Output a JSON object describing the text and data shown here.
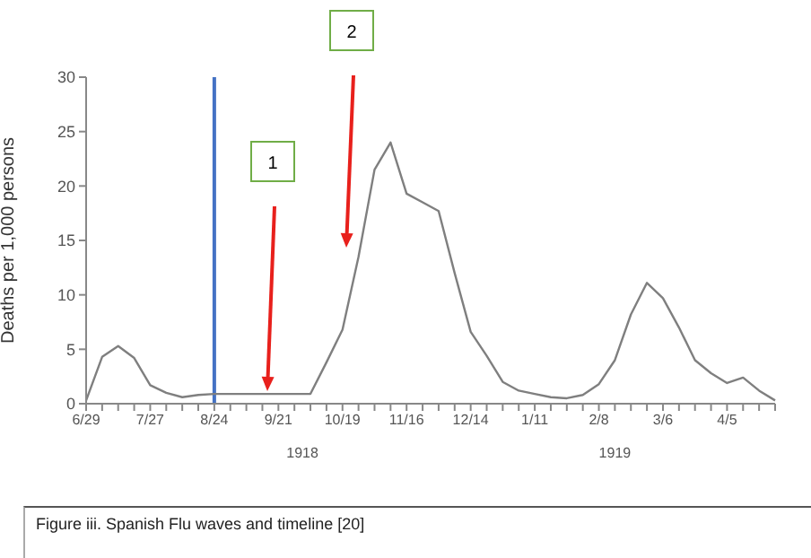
{
  "chart_data": {
    "type": "line",
    "ylabel": "Deaths per 1,000 persons",
    "categories": [
      "6/29",
      null,
      null,
      null,
      "7/27",
      null,
      null,
      null,
      "8/24",
      null,
      null,
      null,
      "9/21",
      null,
      null,
      null,
      "10/19",
      null,
      null,
      null,
      "11/16",
      null,
      null,
      null,
      "12/14",
      null,
      null,
      null,
      "1/11",
      null,
      null,
      null,
      "2/8",
      null,
      null,
      null,
      "3/6",
      null,
      null,
      null,
      "4/5",
      null,
      null,
      null
    ],
    "series": [
      {
        "color": "#7f7f7f",
        "values": [
          0.3,
          4.3,
          5.3,
          4.2,
          1.7,
          1.0,
          0.6,
          0.8,
          0.9,
          0.9,
          0.9,
          0.9,
          0.9,
          0.9,
          0.9,
          3.8,
          6.8,
          13.5,
          21.5,
          24,
          19.3,
          18.5,
          17.7,
          12,
          6.6,
          4.4,
          2.0,
          1.2,
          0.9,
          0.6,
          0.5,
          0.8,
          1.8,
          4.0,
          8.2,
          11.1,
          9.7,
          7.0,
          4.0,
          2.8,
          1.9,
          2.4,
          1.2,
          0.3
        ]
      }
    ],
    "ylim": [
      0,
      30
    ],
    "yticks": [
      0,
      5,
      10,
      15,
      20,
      25,
      30
    ],
    "marker": "none",
    "line_style": "solid",
    "ref_lines": [
      {
        "axis": "x",
        "value": "8/24",
        "color": "#4472c4"
      }
    ],
    "annotations": [
      "1",
      "2",
      "1918",
      "1919",
      "Figure iii. Spanish Flu waves and timeline [20]"
    ]
  }
}
